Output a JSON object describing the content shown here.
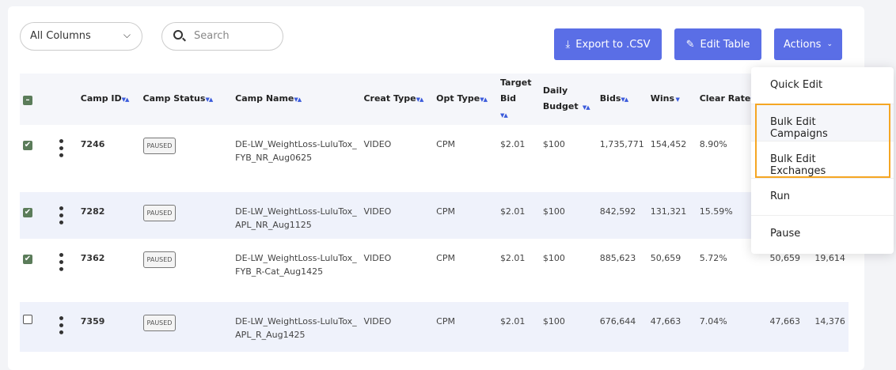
{
  "toolbar": {
    "column_select": "All Columns",
    "search_placeholder": "Search",
    "export": "Export to .CSV",
    "edit_table": "Edit Table",
    "actions": "Actions"
  },
  "table": {
    "headers": [
      "Camp ID",
      "Camp Status",
      "Camp Name",
      "Creat Type",
      "Opt Type",
      "Target Bid",
      "Daily Budget",
      "Bids",
      "Wins",
      "Clear Rate",
      "",
      ""
    ],
    "rows": [
      {
        "checked": true,
        "cells": [
          "7246",
          "PAUSED",
          "DE-LW_WeightLoss-LuluTox_FYB_NR_Aug0625",
          "VIDEO",
          "CPM",
          "$2.01",
          "$100",
          "1,735,771",
          "154,452",
          "8.90%",
          "",
          ""
        ]
      },
      {
        "checked": true,
        "cells": [
          "7282",
          "PAUSED",
          "DE-LW_WeightLoss-LuluTox_APL_NR_Aug1125",
          "VIDEO",
          "CPM",
          "$2.01",
          "$100",
          "842,592",
          "131,321",
          "15.59%",
          "",
          ""
        ]
      },
      {
        "checked": true,
        "cells": [
          "7362",
          "PAUSED",
          "DE-LW_WeightLoss-LuluTox_FYB_R-Cat_Aug1425",
          "VIDEO",
          "CPM",
          "$2.01",
          "$100",
          "885,623",
          "50,659",
          "5.72%",
          "50,659",
          "19,614"
        ]
      },
      {
        "checked": false,
        "cells": [
          "7359",
          "PAUSED",
          "DE-LW_WeightLoss-LuluTox_APL_R_Aug1425",
          "VIDEO",
          "CPM",
          "$2.01",
          "$100",
          "676,644",
          "47,663",
          "7.04%",
          "47,663",
          "14,376"
        ]
      }
    ]
  },
  "menu": {
    "items": [
      "Quick Edit",
      "Bulk Edit Campaigns",
      "Bulk Edit Exchanges",
      "Run",
      "Pause"
    ]
  },
  "colors": {
    "accent": "#5a6ee6",
    "highlight": "#f5a623"
  }
}
